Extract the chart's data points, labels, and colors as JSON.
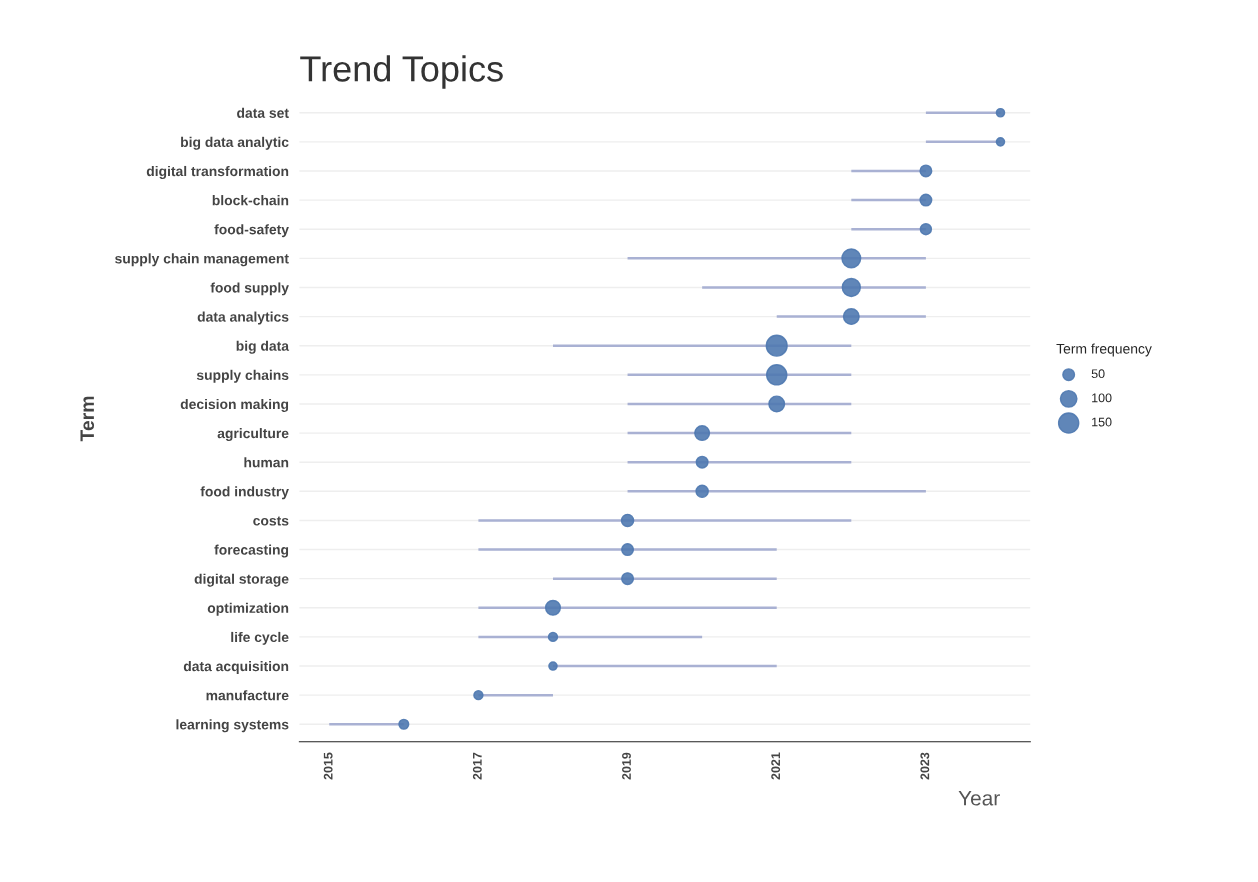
{
  "chart_data": {
    "type": "bubble",
    "title": "Trend Topics",
    "xlabel": "Year",
    "ylabel": "Term",
    "legend_title": "Term frequency",
    "orientation": "horizontal",
    "categories": [
      "data set",
      "big data analytic",
      "digital transformation",
      "block-chain",
      "food-safety",
      "supply chain management",
      "food supply",
      "data analytics",
      "big data",
      "supply chains",
      "decision making",
      "agriculture",
      "human",
      "food industry",
      "costs",
      "forecasting",
      "digital storage",
      "optimization",
      "life cycle",
      "data acquisition",
      "manufacture",
      "learning systems"
    ],
    "series": [
      {
        "color": "#4f79b0",
        "values": [
          2024,
          2024,
          2023,
          2023,
          2023,
          2022,
          2022,
          2022,
          2021,
          2021,
          2021,
          2020,
          2020,
          2020,
          2019,
          2019,
          2019,
          2018,
          2018,
          2018,
          2017,
          2016
        ],
        "sizes": [
          25,
          25,
          50,
          50,
          45,
          130,
          120,
          90,
          160,
          150,
          90,
          80,
          50,
          55,
          55,
          50,
          50,
          80,
          30,
          25,
          30,
          35
        ],
        "errors": [
          [
            2023,
            2024
          ],
          [
            2023,
            2024
          ],
          [
            2022,
            2023
          ],
          [
            2022,
            2023
          ],
          [
            2022,
            2023
          ],
          [
            2019,
            2023
          ],
          [
            2020,
            2023
          ],
          [
            2021,
            2023
          ],
          [
            2018,
            2022
          ],
          [
            2019,
            2022
          ],
          [
            2019,
            2022
          ],
          [
            2019,
            2022
          ],
          [
            2019,
            2022
          ],
          [
            2019,
            2023
          ],
          [
            2017,
            2022
          ],
          [
            2017,
            2021
          ],
          [
            2018,
            2021
          ],
          [
            2017,
            2021
          ],
          [
            2017,
            2020
          ],
          [
            2018,
            2021
          ],
          [
            2017,
            2018
          ],
          [
            2015,
            2016
          ]
        ]
      }
    ],
    "size_legend": [
      50,
      100,
      150
    ],
    "xlim": [
      2014.6,
      2024.4
    ],
    "xticks": [
      2015,
      2017,
      2019,
      2021,
      2023
    ],
    "grid": "y"
  }
}
